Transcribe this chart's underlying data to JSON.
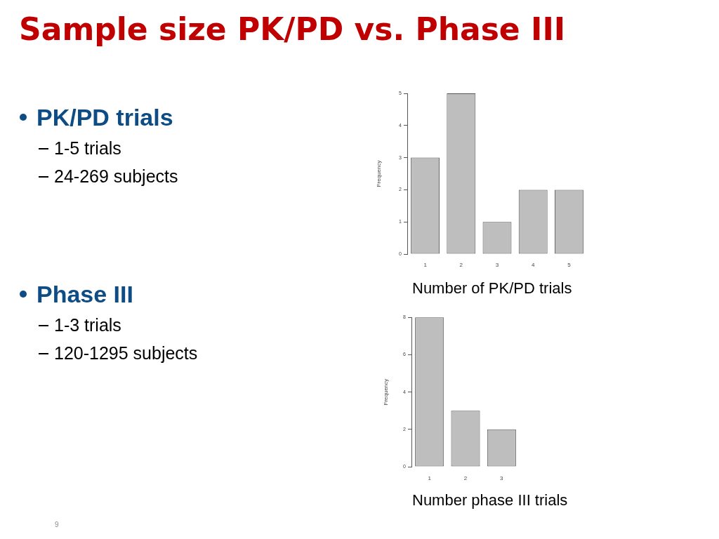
{
  "chart_data": [
    {
      "type": "other",
      "title": "Sample size PK/PD vs. Phase III",
      "annotations": [
        "9"
      ]
    },
    {
      "type": "other",
      "title": "PK/PD trials",
      "annotations": [
        "1-5 trials",
        "24-269 subjects"
      ]
    },
    {
      "type": "bar",
      "xlabel": "Number of PK/PD trials",
      "ylabel": "Frequency",
      "categories": [
        "1",
        "2",
        "3",
        "4",
        "5"
      ],
      "values": [
        3,
        5,
        1,
        2,
        2
      ],
      "color": "#bebebe",
      "ylim": [
        0,
        5
      ],
      "yticks": [
        0,
        1,
        2,
        3,
        4,
        5
      ]
    },
    {
      "type": "other",
      "title": "Phase III",
      "annotations": [
        "1-3 trials",
        "120-1295 subjects"
      ]
    },
    {
      "type": "bar",
      "xlabel": "Number phase III trials",
      "ylabel": "Frequency",
      "categories": [
        "1",
        "2",
        "3"
      ],
      "values": [
        8,
        3,
        2
      ],
      "color": "#bebebe",
      "ylim": [
        0,
        8
      ],
      "yticks": [
        0,
        2,
        4,
        6,
        8
      ]
    }
  ]
}
